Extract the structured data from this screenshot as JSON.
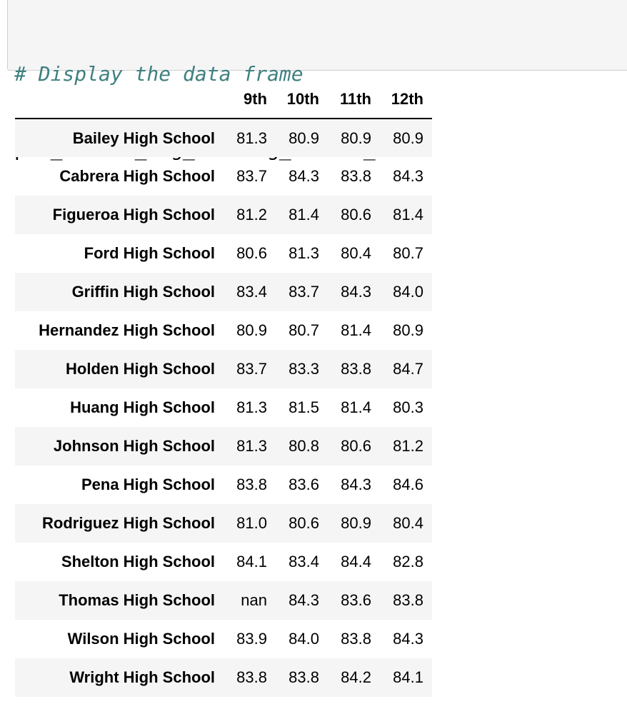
{
  "code_cell": {
    "comment": "# Display the data frame",
    "code": "per_school_avg_reading_scores_df"
  },
  "table": {
    "columns": [
      "9th",
      "10th",
      "11th",
      "12th"
    ],
    "rows": [
      {
        "school": "Bailey High School",
        "values": [
          "81.3",
          "80.9",
          "80.9",
          "80.9"
        ]
      },
      {
        "school": "Cabrera High School",
        "values": [
          "83.7",
          "84.3",
          "83.8",
          "84.3"
        ]
      },
      {
        "school": "Figueroa High School",
        "values": [
          "81.2",
          "81.4",
          "80.6",
          "81.4"
        ]
      },
      {
        "school": "Ford High School",
        "values": [
          "80.6",
          "81.3",
          "80.4",
          "80.7"
        ]
      },
      {
        "school": "Griffin High School",
        "values": [
          "83.4",
          "83.7",
          "84.3",
          "84.0"
        ]
      },
      {
        "school": "Hernandez High School",
        "values": [
          "80.9",
          "80.7",
          "81.4",
          "80.9"
        ]
      },
      {
        "school": "Holden High School",
        "values": [
          "83.7",
          "83.3",
          "83.8",
          "84.7"
        ]
      },
      {
        "school": "Huang High School",
        "values": [
          "81.3",
          "81.5",
          "81.4",
          "80.3"
        ]
      },
      {
        "school": "Johnson High School",
        "values": [
          "81.3",
          "80.8",
          "80.6",
          "81.2"
        ]
      },
      {
        "school": "Pena High School",
        "values": [
          "83.8",
          "83.6",
          "84.3",
          "84.6"
        ]
      },
      {
        "school": "Rodriguez High School",
        "values": [
          "81.0",
          "80.6",
          "80.9",
          "80.4"
        ]
      },
      {
        "school": "Shelton High School",
        "values": [
          "84.1",
          "83.4",
          "84.4",
          "82.8"
        ]
      },
      {
        "school": "Thomas High School",
        "values": [
          "nan",
          "84.3",
          "83.6",
          "83.8"
        ]
      },
      {
        "school": "Wilson High School",
        "values": [
          "83.9",
          "84.0",
          "83.8",
          "84.3"
        ]
      },
      {
        "school": "Wright High School",
        "values": [
          "83.8",
          "83.8",
          "84.2",
          "84.1"
        ]
      }
    ]
  }
}
